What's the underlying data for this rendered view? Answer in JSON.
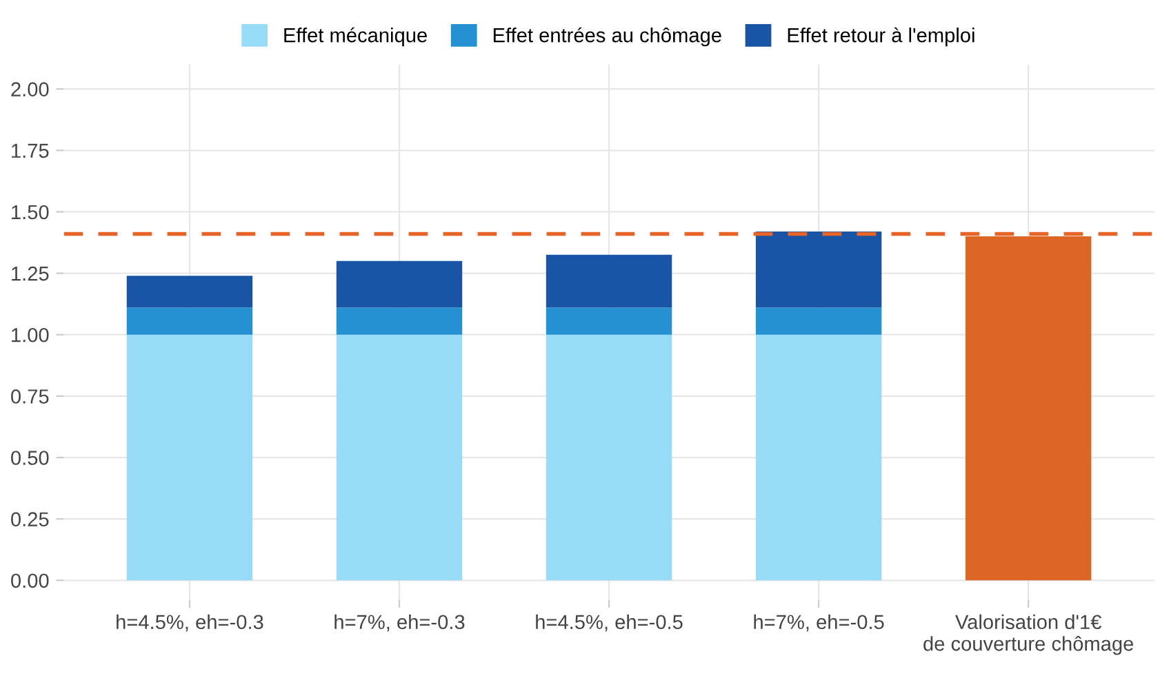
{
  "chart_data": {
    "type": "bar",
    "stacked": true,
    "categories": [
      "h=4.5%, eh=-0.3",
      "h=7%, eh=-0.3",
      "h=4.5%, eh=-0.5",
      "h=7%, eh=-0.5",
      "Valorisation d'1€\nde couverture chômage"
    ],
    "series": [
      {
        "name": "Effet mécanique",
        "color": "#98dbf7",
        "values": [
          1.0,
          1.0,
          1.0,
          1.0,
          null
        ]
      },
      {
        "name": "Effet entrées au chômage",
        "color": "#2590d2",
        "values": [
          0.11,
          0.11,
          0.11,
          0.11,
          null
        ]
      },
      {
        "name": "Effet retour à l'emploi",
        "color": "#1a55a5",
        "values": [
          0.13,
          0.19,
          0.215,
          0.31,
          null
        ]
      },
      {
        "color": "#dc6626",
        "values": [
          null,
          null,
          null,
          null,
          1.4
        ]
      }
    ],
    "ylim": [
      -0.08,
      2.1
    ],
    "yticks": [
      {
        "value": 0,
        "label": "0.00"
      },
      {
        "value": 0.25,
        "label": "0.25"
      },
      {
        "value": 0.5,
        "label": "0.50"
      },
      {
        "value": 0.75,
        "label": "0.75"
      },
      {
        "value": 1,
        "label": "1.00"
      },
      {
        "value": 1.25,
        "label": "1.25"
      },
      {
        "value": 1.5,
        "label": "1.50"
      },
      {
        "value": 1.75,
        "label": "1.75"
      },
      {
        "value": 2,
        "label": "2.00"
      }
    ],
    "ref_lines": [
      {
        "axis": "y",
        "value": 1.41,
        "color": "#e8652a",
        "line_style": "dashed"
      }
    ],
    "grid": true,
    "legend": "top"
  }
}
